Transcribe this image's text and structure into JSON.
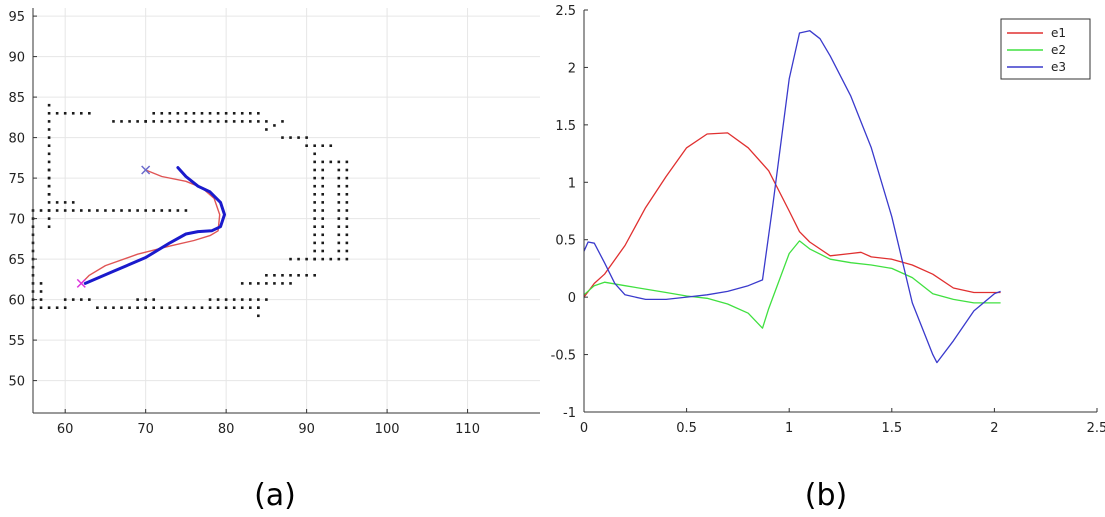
{
  "panel_a": {
    "caption": "(a)",
    "chart_data": {
      "type": "scatter",
      "title": "",
      "xlabel": "",
      "ylabel": "",
      "xlim": [
        56,
        119
      ],
      "ylim": [
        46,
        96
      ],
      "xticks": [
        60,
        70,
        80,
        90,
        100,
        110
      ],
      "yticks": [
        50,
        55,
        60,
        65,
        70,
        75,
        80,
        85,
        90,
        95
      ],
      "grid": true,
      "colors": {
        "obstacle": "#1a1a1a",
        "reference": "#e05555",
        "actual": "#1a1acc",
        "start_marker": "#6a6acc",
        "end_marker": "#dd33dd"
      },
      "obstacle_segments": [
        {
          "x": [
            58,
            58
          ],
          "y": [
            69,
            84
          ]
        },
        {
          "x": [
            59,
            63
          ],
          "y": [
            83,
            83
          ]
        },
        {
          "x": [
            66,
            70
          ],
          "y": [
            82,
            82
          ]
        },
        {
          "x": [
            70,
            85
          ],
          "y": [
            82,
            82
          ]
        },
        {
          "x": [
            71,
            84
          ],
          "y": [
            83,
            83
          ]
        },
        {
          "x": [
            85,
            87
          ],
          "y": [
            81,
            82
          ]
        },
        {
          "x": [
            87,
            90
          ],
          "y": [
            80,
            80
          ]
        },
        {
          "x": [
            90,
            93
          ],
          "y": [
            79,
            79
          ]
        },
        {
          "x": [
            93,
            95
          ],
          "y": [
            77,
            77
          ]
        },
        {
          "x": [
            91,
            91
          ],
          "y": [
            65,
            78
          ]
        },
        {
          "x": [
            92,
            92
          ],
          "y": [
            66,
            77
          ]
        },
        {
          "x": [
            94,
            94
          ],
          "y": [
            66,
            76
          ]
        },
        {
          "x": [
            95,
            95
          ],
          "y": [
            65,
            76
          ]
        },
        {
          "x": [
            88,
            94
          ],
          "y": [
            65,
            65
          ]
        },
        {
          "x": [
            85,
            91
          ],
          "y": [
            63,
            63
          ]
        },
        {
          "x": [
            82,
            88
          ],
          "y": [
            62,
            62
          ]
        },
        {
          "x": [
            78,
            85
          ],
          "y": [
            60,
            60
          ]
        },
        {
          "x": [
            64,
            84
          ],
          "y": [
            59,
            59
          ]
        },
        {
          "x": [
            56,
            60
          ],
          "y": [
            59,
            59
          ]
        },
        {
          "x": [
            56,
            56
          ],
          "y": [
            60,
            70
          ]
        },
        {
          "x": [
            57,
            57
          ],
          "y": [
            60,
            62
          ]
        },
        {
          "x": [
            56,
            75
          ],
          "y": [
            71,
            71
          ]
        },
        {
          "x": [
            59,
            61
          ],
          "y": [
            72,
            72
          ]
        },
        {
          "x": [
            58,
            58
          ],
          "y": [
            73,
            76
          ]
        },
        {
          "x": [
            60,
            63
          ],
          "y": [
            60,
            60
          ]
        },
        {
          "x": [
            69,
            71
          ],
          "y": [
            60,
            60
          ]
        },
        {
          "x": [
            84,
            84
          ],
          "y": [
            58,
            59
          ]
        }
      ],
      "series": [
        {
          "role": "reference",
          "x": [
            70,
            72,
            75,
            77,
            78.5,
            79.2,
            79,
            78,
            76,
            73,
            69,
            65,
            63,
            62
          ],
          "y": [
            76,
            75.2,
            74.6,
            73.8,
            72.5,
            70.5,
            68.5,
            67.9,
            67.3,
            66.6,
            65.6,
            64.2,
            63,
            62
          ]
        },
        {
          "role": "actual",
          "x": [
            74,
            75,
            76.5,
            78,
            79.3,
            79.8,
            79.3,
            78.2,
            76.5,
            75,
            73,
            70,
            66,
            62.5
          ],
          "y": [
            76.3,
            75.2,
            74,
            73.3,
            72,
            70.5,
            69,
            68.5,
            68.4,
            68.1,
            67,
            65.2,
            63.5,
            62
          ]
        }
      ],
      "markers": [
        {
          "role": "start",
          "x": 70,
          "y": 76,
          "symbol": "x"
        },
        {
          "role": "end",
          "x": 62,
          "y": 62,
          "symbol": "x"
        }
      ]
    }
  },
  "panel_b": {
    "caption": "(b)",
    "chart_data": {
      "type": "line",
      "title": "",
      "xlabel": "",
      "ylabel": "",
      "xlim": [
        0,
        2.5
      ],
      "ylim": [
        -1,
        2.5
      ],
      "xticks": [
        0,
        0.5,
        1,
        1.5,
        2,
        2.5
      ],
      "yticks": [
        -1,
        -0.5,
        0,
        0.5,
        1,
        1.5,
        2,
        2.5
      ],
      "grid": false,
      "legend_position": "top-right",
      "series": [
        {
          "name": "e1",
          "color": "#e03030",
          "x": [
            0,
            0.05,
            0.1,
            0.2,
            0.3,
            0.4,
            0.5,
            0.6,
            0.7,
            0.8,
            0.9,
            1.0,
            1.05,
            1.1,
            1.2,
            1.3,
            1.35,
            1.4,
            1.5,
            1.6,
            1.7,
            1.8,
            1.9,
            2.0,
            2.03
          ],
          "y": [
            0,
            0.12,
            0.2,
            0.45,
            0.78,
            1.05,
            1.3,
            1.42,
            1.43,
            1.3,
            1.1,
            0.75,
            0.57,
            0.48,
            0.36,
            0.38,
            0.39,
            0.35,
            0.33,
            0.28,
            0.2,
            0.08,
            0.04,
            0.04,
            0.04
          ]
        },
        {
          "name": "e2",
          "color": "#40e040",
          "x": [
            0,
            0.05,
            0.1,
            0.2,
            0.3,
            0.4,
            0.5,
            0.6,
            0.7,
            0.8,
            0.87,
            0.9,
            1.0,
            1.05,
            1.1,
            1.2,
            1.3,
            1.4,
            1.5,
            1.6,
            1.7,
            1.8,
            1.9,
            2.0,
            2.03
          ],
          "y": [
            0.02,
            0.1,
            0.13,
            0.1,
            0.07,
            0.04,
            0.01,
            -0.01,
            -0.06,
            -0.14,
            -0.27,
            -0.1,
            0.38,
            0.49,
            0.42,
            0.33,
            0.3,
            0.28,
            0.25,
            0.17,
            0.03,
            -0.02,
            -0.05,
            -0.05,
            -0.05
          ]
        },
        {
          "name": "e3",
          "color": "#3a3acc",
          "x": [
            0,
            0.02,
            0.05,
            0.1,
            0.15,
            0.2,
            0.3,
            0.4,
            0.5,
            0.6,
            0.7,
            0.8,
            0.87,
            0.92,
            1.0,
            1.05,
            1.1,
            1.15,
            1.2,
            1.3,
            1.4,
            1.5,
            1.6,
            1.7,
            1.72,
            1.8,
            1.9,
            2.0,
            2.03
          ],
          "y": [
            0.4,
            0.48,
            0.47,
            0.3,
            0.12,
            0.02,
            -0.02,
            -0.02,
            0.0,
            0.02,
            0.05,
            0.1,
            0.15,
            0.8,
            1.9,
            2.3,
            2.32,
            2.25,
            2.1,
            1.75,
            1.3,
            0.7,
            -0.05,
            -0.5,
            -0.57,
            -0.38,
            -0.12,
            0.03,
            0.05
          ]
        }
      ]
    }
  }
}
